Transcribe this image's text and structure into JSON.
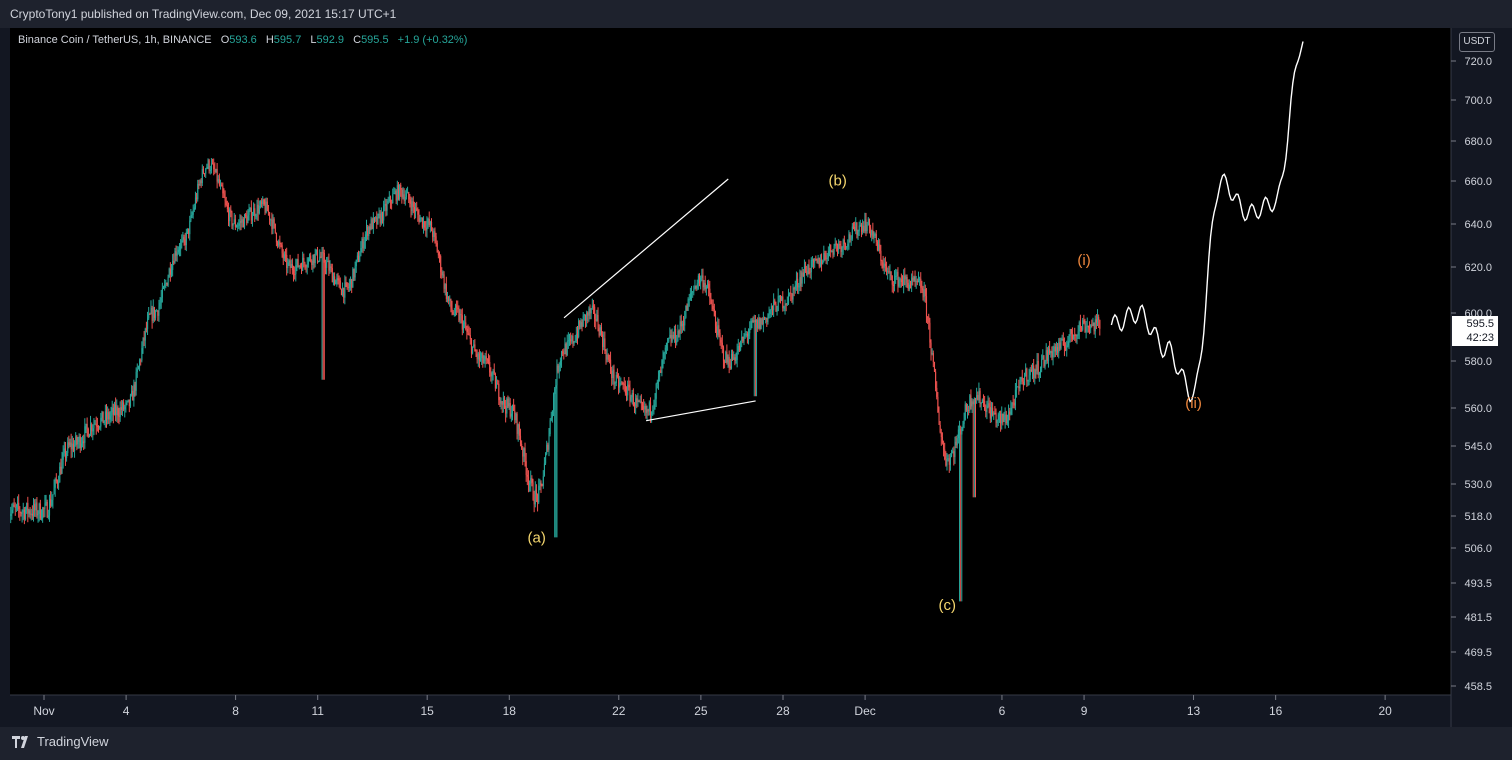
{
  "header": {
    "published_line": "CryptoTony1 published on TradingView.com, Dec 09, 2021 15:17 UTC+1"
  },
  "legend": {
    "symbol": "Binance Coin / TetherUS, 1h, BINANCE",
    "o_label": "O",
    "o_value": "593.6",
    "h_label": "H",
    "h_value": "595.7",
    "l_label": "L",
    "l_value": "592.9",
    "c_label": "C",
    "c_value": "595.5",
    "change": "+1.9 (+0.32%)"
  },
  "price_axis": {
    "currency": "USDT",
    "ticks": [
      "720.0",
      "700.0",
      "680.0",
      "660.0",
      "640.0",
      "620.0",
      "600.0",
      "580.0",
      "560.0",
      "545.0",
      "530.0",
      "518.0",
      "506.0",
      "493.5",
      "481.5",
      "469.5",
      "458.5"
    ],
    "last_price": "595.5",
    "countdown": "42:23"
  },
  "time_axis": {
    "ticks": [
      "Nov",
      "4",
      "8",
      "11",
      "15",
      "18",
      "22",
      "25",
      "28",
      "Dec",
      "6",
      "9",
      "13",
      "16",
      "20"
    ]
  },
  "annotations": {
    "wave_a": "(a)",
    "wave_b": "(b)",
    "wave_c": "(c)",
    "wave_i": "(i)",
    "wave_ii": "(ii)"
  },
  "colors": {
    "background": "#000000",
    "up": "#26a69a",
    "down": "#ef5350",
    "wave_abc": "#f5d76e",
    "wave_i_ii": "#f0883e",
    "drawing": "#ffffff"
  },
  "footer": {
    "brand": "TradingView"
  },
  "chart_data": {
    "type": "candlestick",
    "title": "Binance Coin / TetherUS, 1h, BINANCE",
    "ylabel": "USDT",
    "ylim": [
      455,
      730
    ],
    "y_scale": "log",
    "x_range": [
      "2021-11-01",
      "2021-12-21"
    ],
    "last_close": 595.5,
    "series": [
      {
        "name": "price path (approx. key points)",
        "x": [
          "2021-11-01",
          "2021-11-02",
          "2021-11-03",
          "2021-11-04",
          "2021-11-05",
          "2021-11-06",
          "2021-11-07",
          "2021-11-08",
          "2021-11-09",
          "2021-11-10",
          "2021-11-11",
          "2021-11-12",
          "2021-11-13",
          "2021-11-14",
          "2021-11-15",
          "2021-11-16",
          "2021-11-17",
          "2021-11-18",
          "2021-11-19",
          "2021-11-20",
          "2021-11-21",
          "2021-11-22",
          "2021-11-23",
          "2021-11-24",
          "2021-11-25",
          "2021-11-26",
          "2021-11-27",
          "2021-11-28",
          "2021-11-29",
          "2021-11-30",
          "2021-12-01",
          "2021-12-02",
          "2021-12-03",
          "2021-12-04",
          "2021-12-05",
          "2021-12-06",
          "2021-12-07",
          "2021-12-08",
          "2021-12-09"
        ],
        "y": [
          520,
          545,
          555,
          560,
          600,
          630,
          668,
          640,
          648,
          620,
          625,
          610,
          640,
          655,
          640,
          600,
          580,
          560,
          525,
          585,
          600,
          570,
          558,
          590,
          615,
          580,
          595,
          605,
          620,
          630,
          640,
          615,
          612,
          540,
          565,
          555,
          575,
          585,
          595
        ]
      }
    ],
    "drawings": {
      "rising_wedge_upper": [
        [
          "2021-11-20",
          598
        ],
        [
          "2021-11-26",
          661
        ]
      ],
      "rising_wedge_lower": [
        [
          "2021-11-23",
          555
        ],
        [
          "2021-11-27",
          563
        ]
      ],
      "projection": {
        "x": [
          "2021-12-10",
          "2021-12-11",
          "2021-12-12",
          "2021-12-13",
          "2021-12-14",
          "2021-12-15",
          "2021-12-16",
          "2021-12-17"
        ],
        "y": [
          595,
          600,
          585,
          566,
          660,
          645,
          650,
          730
        ]
      }
    },
    "wave_labels": [
      {
        "label": "(a)",
        "x": "2021-11-19",
        "y": 508
      },
      {
        "label": "(b)",
        "x": "2021-11-30",
        "y": 658
      },
      {
        "label": "(c)",
        "x": "2021-12-04",
        "y": 484
      },
      {
        "label": "(i)",
        "x": "2021-12-09",
        "y": 621
      },
      {
        "label": "(ii)",
        "x": "2021-12-13",
        "y": 560
      }
    ]
  }
}
